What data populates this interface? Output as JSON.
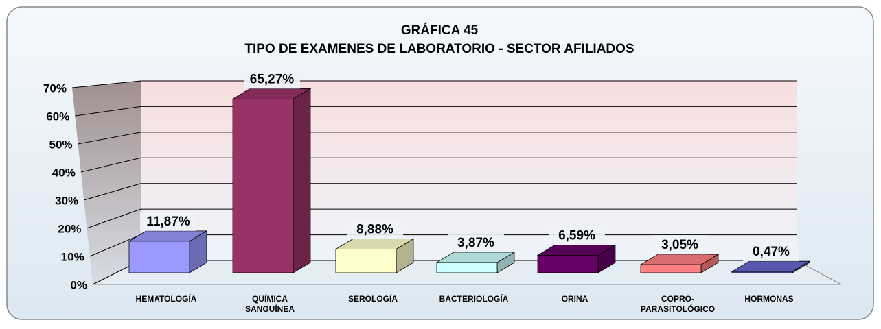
{
  "chart_data": {
    "type": "bar3d",
    "title": "GRÁFICA 45",
    "subtitle": "TIPO  DE EXAMENES DE LABORATORIO - SECTOR AFILIADOS",
    "categories": [
      [
        "HEMATOLOGÍA"
      ],
      [
        "QUÍMICA",
        "SANGUÍNEA"
      ],
      [
        "SEROLOGÍA"
      ],
      [
        "BACTERIOLOGÍA"
      ],
      [
        "ORINA"
      ],
      [
        "COPRO-",
        "PARASITOLÓGICO"
      ],
      [
        "HORMONAS"
      ]
    ],
    "values": [
      11.87,
      65.27,
      8.88,
      3.87,
      6.59,
      3.05,
      0.47
    ],
    "value_labels": [
      "11,87%",
      "65,27%",
      "8,88%",
      "3,87%",
      "6,59%",
      "3,05%",
      "0,47%"
    ],
    "colors": [
      "#9999ff",
      "#993366",
      "#ffffcc",
      "#ccffff",
      "#660066",
      "#ff8080",
      "#6666cc"
    ],
    "ylim": [
      0,
      70
    ],
    "yticks": [
      {
        "value": 0,
        "label": "0%"
      },
      {
        "value": 10,
        "label": "10%"
      },
      {
        "value": 20,
        "label": "20%"
      },
      {
        "value": 30,
        "label": "30%"
      },
      {
        "value": 40,
        "label": "40%"
      },
      {
        "value": 50,
        "label": "50%"
      },
      {
        "value": 60,
        "label": "60%"
      },
      {
        "value": 70,
        "label": "70%"
      }
    ],
    "grid": true
  }
}
